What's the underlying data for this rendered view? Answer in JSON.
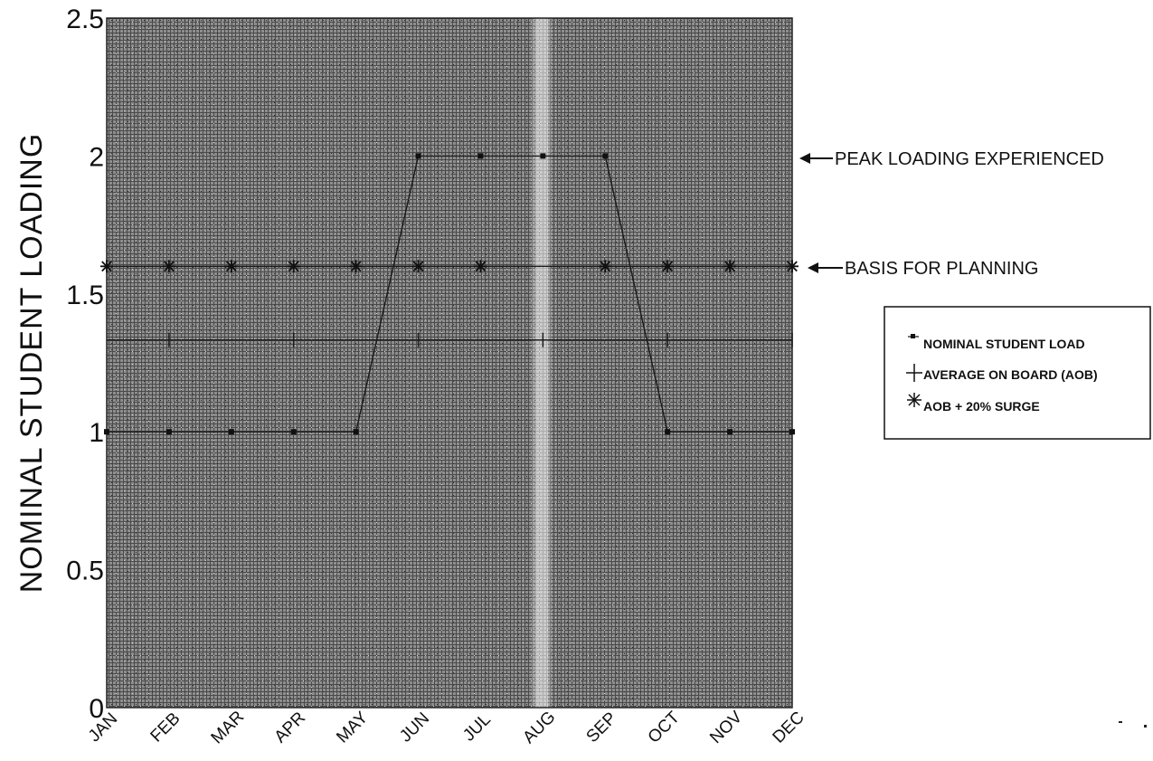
{
  "chart_data": {
    "type": "line",
    "ylabel": "NOMINAL STUDENT LOADING",
    "xlabel": "",
    "categories": [
      "JAN",
      "FEB",
      "MAR",
      "APR",
      "MAY",
      "JUN",
      "JUL",
      "AUG",
      "SEP",
      "OCT",
      "NOV",
      "DEC"
    ],
    "ylim": [
      0,
      2.5
    ],
    "yticks": [
      "0",
      "0.5",
      "1",
      "1.5",
      "2",
      "2.5"
    ],
    "ytick_values": [
      0,
      0.5,
      1,
      1.5,
      2,
      2.5
    ],
    "grid": true,
    "legend_position": "right",
    "series": [
      {
        "name": "NOMINAL STUDENT LOAD",
        "marker": "dot",
        "values": [
          1,
          1,
          1,
          1,
          1,
          2,
          2,
          2,
          2,
          1,
          1,
          1
        ]
      },
      {
        "name": "AVERAGE ON BOARD (AOB)",
        "marker": "plus",
        "values": [
          1.333,
          1.333,
          1.333,
          1.333,
          1.333,
          1.333,
          1.333,
          1.333,
          1.333,
          1.333,
          1.333,
          1.333
        ]
      },
      {
        "name": "AOB + 20% SURGE",
        "marker": "asterisk",
        "values": [
          1.6,
          1.6,
          1.6,
          1.6,
          1.6,
          1.6,
          1.6,
          1.6,
          1.6,
          1.6,
          1.6,
          1.6
        ]
      }
    ],
    "annotations": [
      {
        "text": "PEAK LOADING EXPERIENCED",
        "y": 2
      },
      {
        "text": "BASIS FOR PLANNING",
        "y": 1.6
      }
    ]
  }
}
